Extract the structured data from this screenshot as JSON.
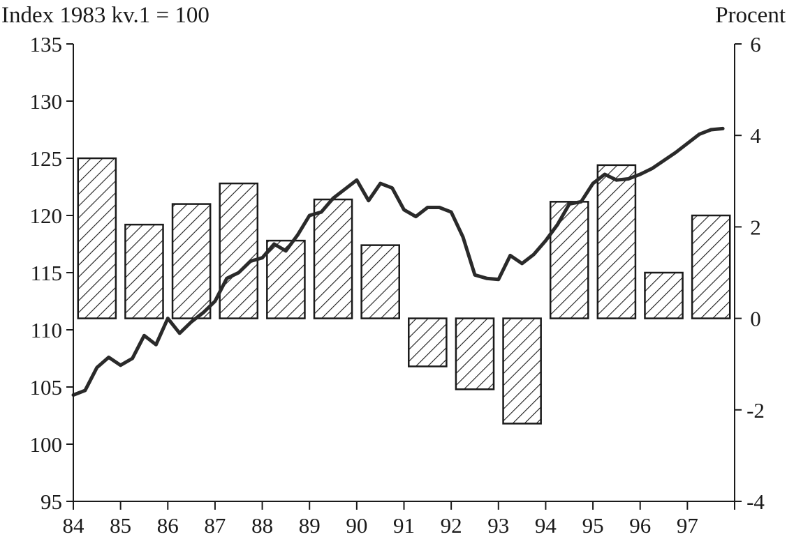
{
  "chart_data": {
    "type": "bar+line",
    "left_axis": {
      "label": "Index 1983 kv.1 = 100",
      "ylim": [
        95,
        135
      ],
      "ticks": [
        "95",
        "100",
        "105",
        "110",
        "115",
        "120",
        "125",
        "130",
        "135"
      ]
    },
    "right_axis": {
      "label": "Procent",
      "ylim": [
        -4,
        6
      ],
      "ticks": [
        "-4",
        "-2",
        "0",
        "2",
        "4",
        "6"
      ]
    },
    "x_axis": {
      "ticks": [
        "84",
        "85",
        "86",
        "87",
        "88",
        "89",
        "90",
        "91",
        "92",
        "93",
        "94",
        "95",
        "96",
        "97"
      ],
      "xlim": [
        84,
        98
      ]
    },
    "bars": {
      "axis": "right",
      "categories": [
        "84",
        "85",
        "86",
        "87",
        "88",
        "89",
        "90",
        "91",
        "92",
        "93",
        "94",
        "95",
        "96",
        "97"
      ],
      "values": [
        3.5,
        2.05,
        2.5,
        2.95,
        1.7,
        2.6,
        1.6,
        -1.05,
        -1.55,
        -2.3,
        2.55,
        3.35,
        1.0,
        2.25
      ]
    },
    "line": {
      "axis": "left",
      "x": [
        84.0,
        84.25,
        84.5,
        84.75,
        85.0,
        85.25,
        85.5,
        85.75,
        86.0,
        86.25,
        86.5,
        86.75,
        87.0,
        87.25,
        87.5,
        87.75,
        88.0,
        88.25,
        88.5,
        88.75,
        89.0,
        89.25,
        89.5,
        89.75,
        90.0,
        90.25,
        90.5,
        90.75,
        91.0,
        91.25,
        91.5,
        91.75,
        92.0,
        92.25,
        92.5,
        92.75,
        93.0,
        93.25,
        93.5,
        93.75,
        94.0,
        94.25,
        94.5,
        94.75,
        95.0,
        95.25,
        95.5,
        95.75,
        96.0,
        96.25,
        96.5,
        96.75,
        97.0,
        97.25,
        97.5,
        97.75
      ],
      "values": [
        104.3,
        104.7,
        106.7,
        107.6,
        106.9,
        107.5,
        109.5,
        108.7,
        111.0,
        109.7,
        110.7,
        111.5,
        112.5,
        114.5,
        115.0,
        116.0,
        116.3,
        117.5,
        116.9,
        118.3,
        120.0,
        120.3,
        121.5,
        122.3,
        123.1,
        121.3,
        122.8,
        122.4,
        120.5,
        119.9,
        120.7,
        120.7,
        120.3,
        118.1,
        114.8,
        114.5,
        114.4,
        116.5,
        115.8,
        116.6,
        117.8,
        119.2,
        121.0,
        121.2,
        122.8,
        123.6,
        123.1,
        123.2,
        123.6,
        124.1,
        124.8,
        125.5,
        126.3,
        127.1,
        127.5,
        127.6
      ]
    }
  }
}
